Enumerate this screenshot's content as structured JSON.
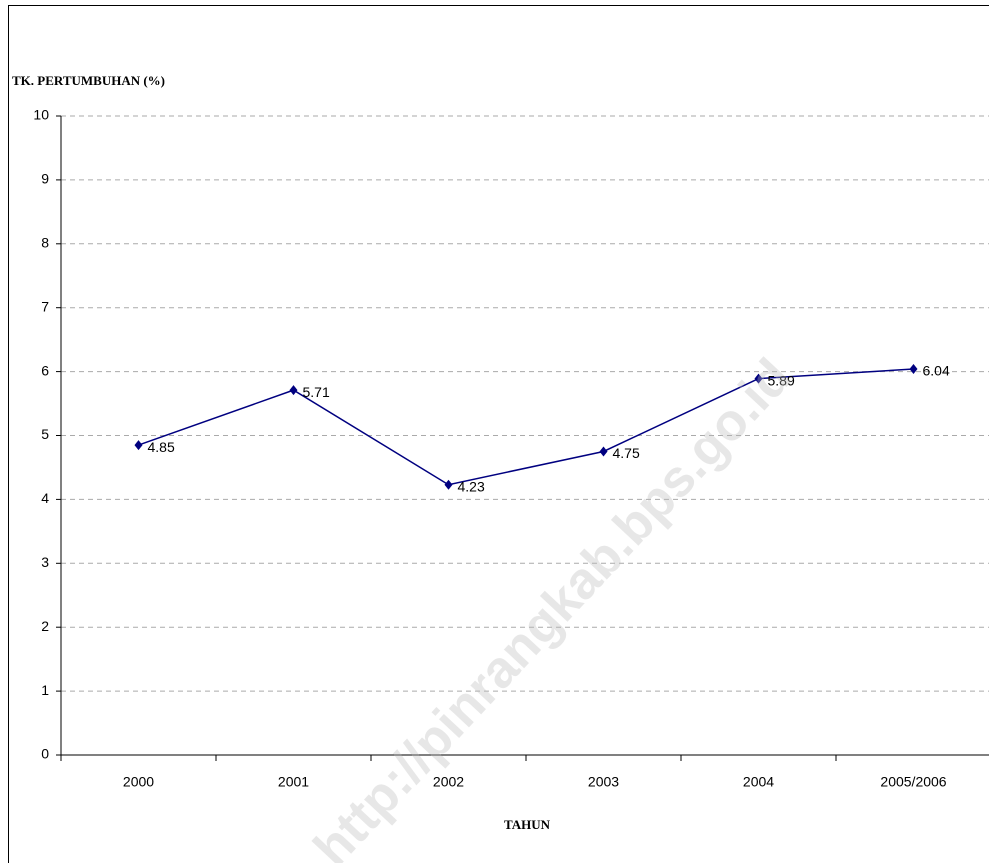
{
  "chart_data": {
    "type": "line",
    "y_label": "TK. PERTUMBUHAN (%)",
    "x_label": "TAHUN",
    "watermark": "http://pinrangkab.bps.go.id",
    "categories": [
      "2000",
      "2001",
      "2002",
      "2003",
      "2004",
      "2005/2006"
    ],
    "series": [
      {
        "name": "TK. PERTUMBUHAN",
        "color": "#000080",
        "values": [
          4.85,
          5.71,
          4.23,
          4.75,
          5.89,
          6.04
        ]
      }
    ],
    "ylim": [
      0,
      10
    ],
    "yticks": [
      0,
      1,
      2,
      3,
      4,
      5,
      6,
      7,
      8,
      9,
      10
    ],
    "grid": true,
    "data_labels": true
  }
}
